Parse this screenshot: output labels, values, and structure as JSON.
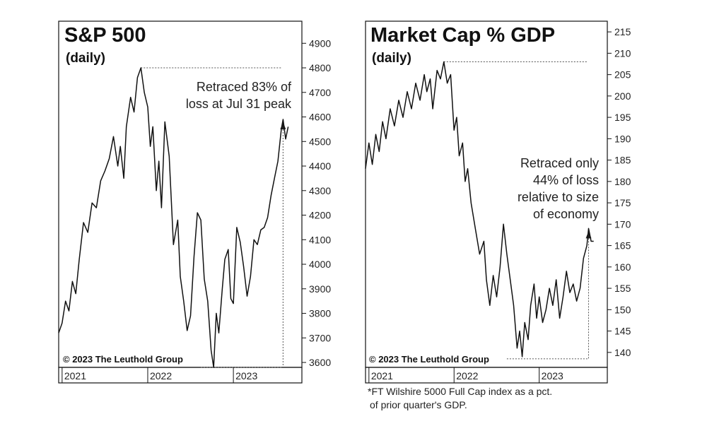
{
  "chart_data": [
    {
      "type": "line",
      "title": "S&P 500",
      "subtitle": "(daily)",
      "annotation_lines": [
        "Retraced 83% of",
        "loss at Jul 31 peak"
      ],
      "copyright": "© 2023 The Leuthold Group",
      "x_labels": [
        "2021",
        "2022",
        "2023"
      ],
      "y_ticks": [
        3600,
        3700,
        3800,
        3900,
        4000,
        4100,
        4200,
        4300,
        4400,
        4500,
        4600,
        4700,
        4800,
        4900
      ],
      "ylim": [
        3580,
        4990
      ],
      "xlim": [
        2020.96,
        2023.8
      ],
      "reference_levels": [
        4800,
        3580
      ],
      "retrace_peak": {
        "x": 2023.58,
        "y": 4590
      },
      "series": [
        {
          "x": [
            2020.96,
            2021.0,
            2021.04,
            2021.08,
            2021.12,
            2021.16,
            2021.2,
            2021.25,
            2021.3,
            2021.35,
            2021.4,
            2021.45,
            2021.5,
            2021.55,
            2021.6,
            2021.65,
            2021.68,
            2021.72,
            2021.75,
            2021.8,
            2021.84,
            2021.88,
            2021.92,
            2021.96,
            2022.0,
            2022.03,
            2022.06,
            2022.1,
            2022.13,
            2022.16,
            2022.2,
            2022.25,
            2022.3,
            2022.35,
            2022.38,
            2022.42,
            2022.46,
            2022.5,
            2022.54,
            2022.58,
            2022.62,
            2022.66,
            2022.7,
            2022.74,
            2022.77,
            2022.8,
            2022.83,
            2022.87,
            2022.9,
            2022.94,
            2022.97,
            2023.0,
            2023.04,
            2023.08,
            2023.12,
            2023.16,
            2023.2,
            2023.24,
            2023.28,
            2023.32,
            2023.36,
            2023.4,
            2023.44,
            2023.48,
            2023.52,
            2023.56,
            2023.58,
            2023.61,
            2023.64
          ],
          "values": [
            3720,
            3760,
            3850,
            3810,
            3930,
            3880,
            4020,
            4170,
            4130,
            4250,
            4230,
            4340,
            4380,
            4430,
            4520,
            4400,
            4480,
            4350,
            4560,
            4680,
            4620,
            4760,
            4800,
            4700,
            4640,
            4480,
            4560,
            4300,
            4420,
            4230,
            4580,
            4440,
            4080,
            4180,
            3950,
            3850,
            3730,
            3790,
            4030,
            4210,
            4180,
            3940,
            3850,
            3650,
            3580,
            3800,
            3720,
            3900,
            4020,
            4060,
            3860,
            3840,
            4150,
            4090,
            3990,
            3870,
            3950,
            4100,
            4080,
            4140,
            4150,
            4190,
            4280,
            4350,
            4420,
            4550,
            4590,
            4510,
            4560
          ]
        }
      ]
    },
    {
      "type": "line",
      "title": "Market Cap % GDP",
      "subtitle": "(daily)",
      "annotation_lines": [
        "Retraced only",
        "44% of loss",
        "relative to size",
        "of economy"
      ],
      "copyright": "© 2023 The Leuthold Group",
      "x_labels": [
        "2021",
        "2022",
        "2023"
      ],
      "y_ticks": [
        140,
        145,
        150,
        155,
        160,
        165,
        170,
        175,
        180,
        185,
        190,
        195,
        200,
        205,
        210,
        215
      ],
      "ylim": [
        136.5,
        217.5
      ],
      "xlim": [
        2020.96,
        2023.8
      ],
      "reference_levels": [
        208,
        138.5
      ],
      "retrace_peak": {
        "x": 2023.58,
        "y": 169
      },
      "series": [
        {
          "x": [
            2020.96,
            2021.0,
            2021.04,
            2021.08,
            2021.12,
            2021.16,
            2021.2,
            2021.25,
            2021.3,
            2021.35,
            2021.4,
            2021.45,
            2021.5,
            2021.55,
            2021.6,
            2021.65,
            2021.68,
            2021.72,
            2021.75,
            2021.8,
            2021.84,
            2021.88,
            2021.92,
            2021.96,
            2022.0,
            2022.03,
            2022.06,
            2022.1,
            2022.13,
            2022.16,
            2022.2,
            2022.25,
            2022.3,
            2022.35,
            2022.38,
            2022.42,
            2022.46,
            2022.5,
            2022.54,
            2022.58,
            2022.62,
            2022.66,
            2022.7,
            2022.74,
            2022.77,
            2022.8,
            2022.83,
            2022.87,
            2022.9,
            2022.94,
            2022.97,
            2023.0,
            2023.04,
            2023.08,
            2023.12,
            2023.16,
            2023.2,
            2023.24,
            2023.28,
            2023.32,
            2023.36,
            2023.4,
            2023.44,
            2023.48,
            2023.52,
            2023.56,
            2023.58,
            2023.61,
            2023.64
          ],
          "values": [
            183,
            189,
            184,
            191,
            187,
            194,
            190,
            197,
            193,
            199,
            195,
            201,
            197,
            203,
            199,
            205,
            201,
            204,
            197,
            206,
            204,
            208,
            203,
            205,
            192,
            195,
            186,
            189,
            180,
            183,
            175,
            169,
            163,
            166,
            157,
            151,
            158,
            153,
            160,
            170,
            163,
            157,
            151,
            141,
            145,
            139,
            147,
            143,
            151,
            156,
            148,
            153,
            147,
            150,
            155,
            151,
            157,
            148,
            153,
            159,
            154,
            156,
            152,
            155,
            162,
            165,
            169,
            166,
            166
          ]
        }
      ]
    }
  ],
  "footnote_lines": [
    "*FT Wilshire 5000 Full Cap index as a pct.",
    "of prior quarter's GDP."
  ]
}
